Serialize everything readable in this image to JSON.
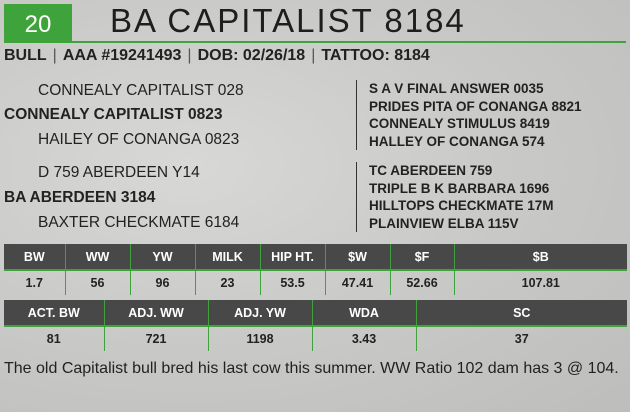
{
  "lot_number": "20",
  "name": "BA CAPITALIST 8184",
  "info": {
    "type": "BULL",
    "reg": "AAA #19241493",
    "dob": "DOB: 02/26/18",
    "tattoo": "TATTOO: 8184"
  },
  "pedigree": {
    "sire_sire": "CONNEALY CAPITALIST 028",
    "sire": "CONNEALY CAPITALIST 0823",
    "sire_dam": "HAILEY OF CONANGA 0823",
    "dam_sire": "D 759 ABERDEEN Y14",
    "dam": "BA ABERDEEN 3184",
    "dam_dam": "BAXTER CHECKMATE 6184",
    "sire_ext": [
      "S A V FINAL ANSWER 0035",
      "PRIDES PITA OF CONANGA 8821",
      "CONNEALY STIMULUS 8419",
      "HALLEY OF CONANGA 574"
    ],
    "dam_ext": [
      "TC ABERDEEN 759",
      "TRIPLE B K BARBARA 1696",
      "HILLTOPS CHECKMATE 17M",
      "PLAINVIEW ELBA 115V"
    ]
  },
  "epds": {
    "headers": [
      "BW",
      "WW",
      "YW",
      "MILK",
      "HIP HT.",
      "$W",
      "$F",
      "$B"
    ],
    "values": [
      "1.7",
      "56",
      "96",
      "23",
      "53.5",
      "47.41",
      "52.66",
      "107.81"
    ]
  },
  "actuals": {
    "headers": [
      "ACT. BW",
      "ADJ. WW",
      "ADJ. YW",
      "WDA",
      "SC"
    ],
    "values": [
      "81",
      "721",
      "1198",
      "3.43",
      "37"
    ]
  },
  "comment": "The old Capitalist bull bred his last cow this summer. WW Ratio 102 dam has 3 @ 104.",
  "colors": {
    "accent": "#3fa33b",
    "header_bg": "#484848"
  }
}
